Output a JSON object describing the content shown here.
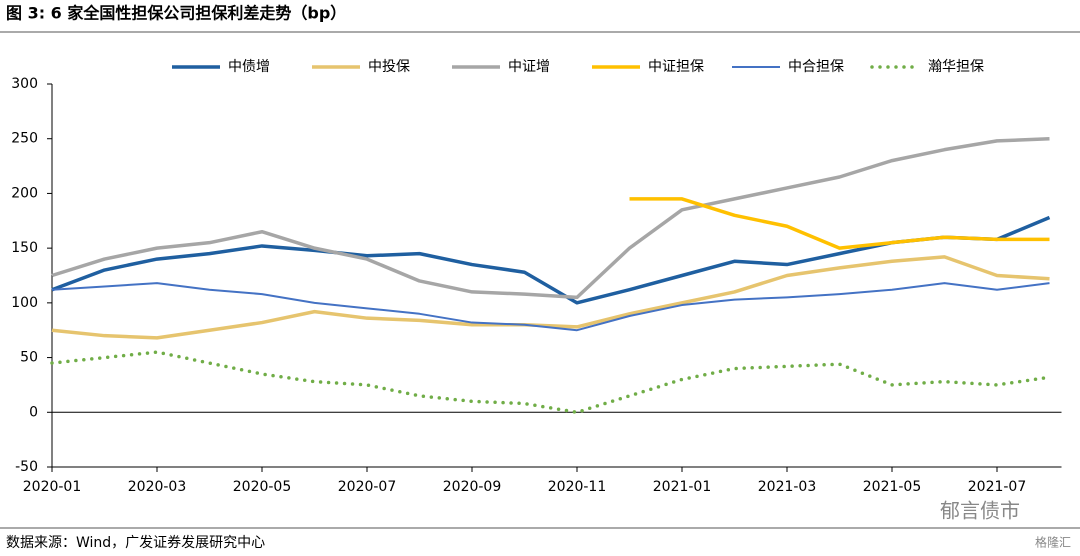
{
  "chart_data": {
    "type": "line",
    "title": "图 3:  6 家全国性担保公司担保利差走势（bp）",
    "source": "数据来源：Wind，广发证券发展研究中心",
    "watermark": "郁言债市",
    "watermark2": "格隆汇",
    "x": [
      "2020-01",
      null,
      "2020-03",
      null,
      "2020-05",
      null,
      "2020-07",
      null,
      "2020-09",
      null,
      "2020-11",
      null,
      "2021-01",
      null,
      "2021-03",
      null,
      "2021-05",
      null,
      "2021-07",
      null
    ],
    "ylim": [
      -50,
      300
    ],
    "yticks": [
      -50,
      0,
      50,
      100,
      150,
      200,
      250,
      300
    ],
    "series": [
      {
        "name": "中债增",
        "color": "#1f5fa0",
        "values": [
          112,
          130,
          140,
          145,
          152,
          148,
          143,
          145,
          135,
          128,
          100,
          112,
          125,
          138,
          135,
          145,
          155,
          160,
          158,
          178
        ]
      },
      {
        "name": "中投保",
        "color": "#e6c46e",
        "values": [
          75,
          70,
          68,
          75,
          82,
          92,
          86,
          84,
          80,
          80,
          78,
          90,
          100,
          110,
          125,
          132,
          138,
          142,
          125,
          122
        ]
      },
      {
        "name": "中证增",
        "color": "#a6a6a6",
        "values": [
          125,
          140,
          150,
          155,
          165,
          150,
          140,
          120,
          110,
          108,
          105,
          150,
          185,
          195,
          205,
          215,
          230,
          240,
          248,
          250
        ]
      },
      {
        "name": "中证担保",
        "color": "#ffc000",
        "values": [
          null,
          null,
          null,
          null,
          null,
          null,
          null,
          null,
          null,
          null,
          null,
          195,
          195,
          180,
          170,
          150,
          155,
          160,
          158,
          158
        ]
      },
      {
        "name": "中合担保",
        "color": "#4472c4",
        "values": [
          112,
          115,
          118,
          112,
          108,
          100,
          95,
          90,
          82,
          80,
          75,
          88,
          98,
          103,
          105,
          108,
          112,
          118,
          112,
          118
        ]
      },
      {
        "name": "瀚华担保",
        "color": "#70ad47",
        "dotted": true,
        "values": [
          45,
          50,
          55,
          45,
          35,
          28,
          25,
          15,
          10,
          8,
          0,
          15,
          30,
          40,
          42,
          44,
          25,
          28,
          25,
          32
        ]
      }
    ]
  }
}
